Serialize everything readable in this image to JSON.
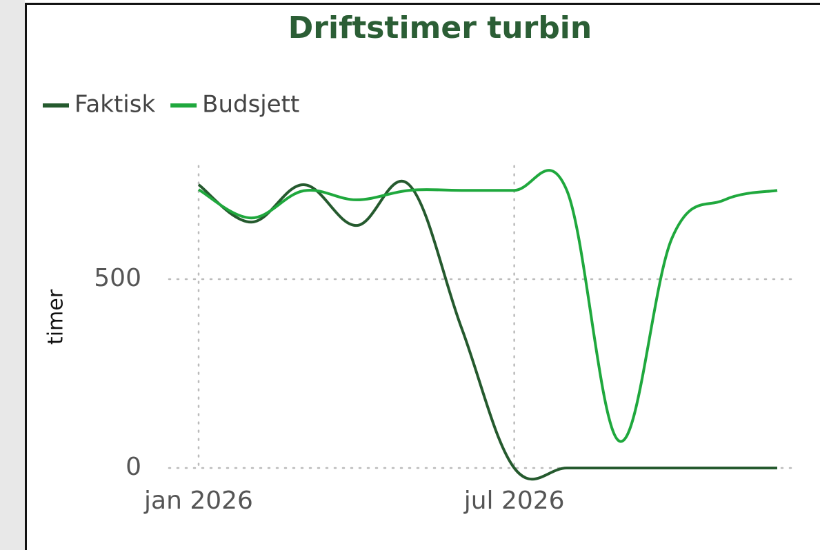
{
  "chart_data": {
    "type": "line",
    "title": "Driftstimer turbin",
    "y_label": "timer",
    "categories": [
      "jan 2026",
      null,
      null,
      null,
      null,
      null,
      "jul 2026",
      null,
      null,
      null,
      null,
      null
    ],
    "series": [
      {
        "name": "Faktisk",
        "color": "#255a2e",
        "values": [
          750,
          651,
          750,
          642,
          750,
          370,
          0,
          0,
          0,
          0,
          0,
          0
        ]
      },
      {
        "name": "Budsjett",
        "color": "#1fa83d",
        "values": [
          737,
          662,
          734,
          710,
          735,
          735,
          735,
          735,
          71,
          609,
          710,
          735
        ]
      }
    ],
    "ylim": [
      0,
      800
    ],
    "yticks": [
      0,
      500
    ],
    "grid": true,
    "legend": "top-left"
  }
}
